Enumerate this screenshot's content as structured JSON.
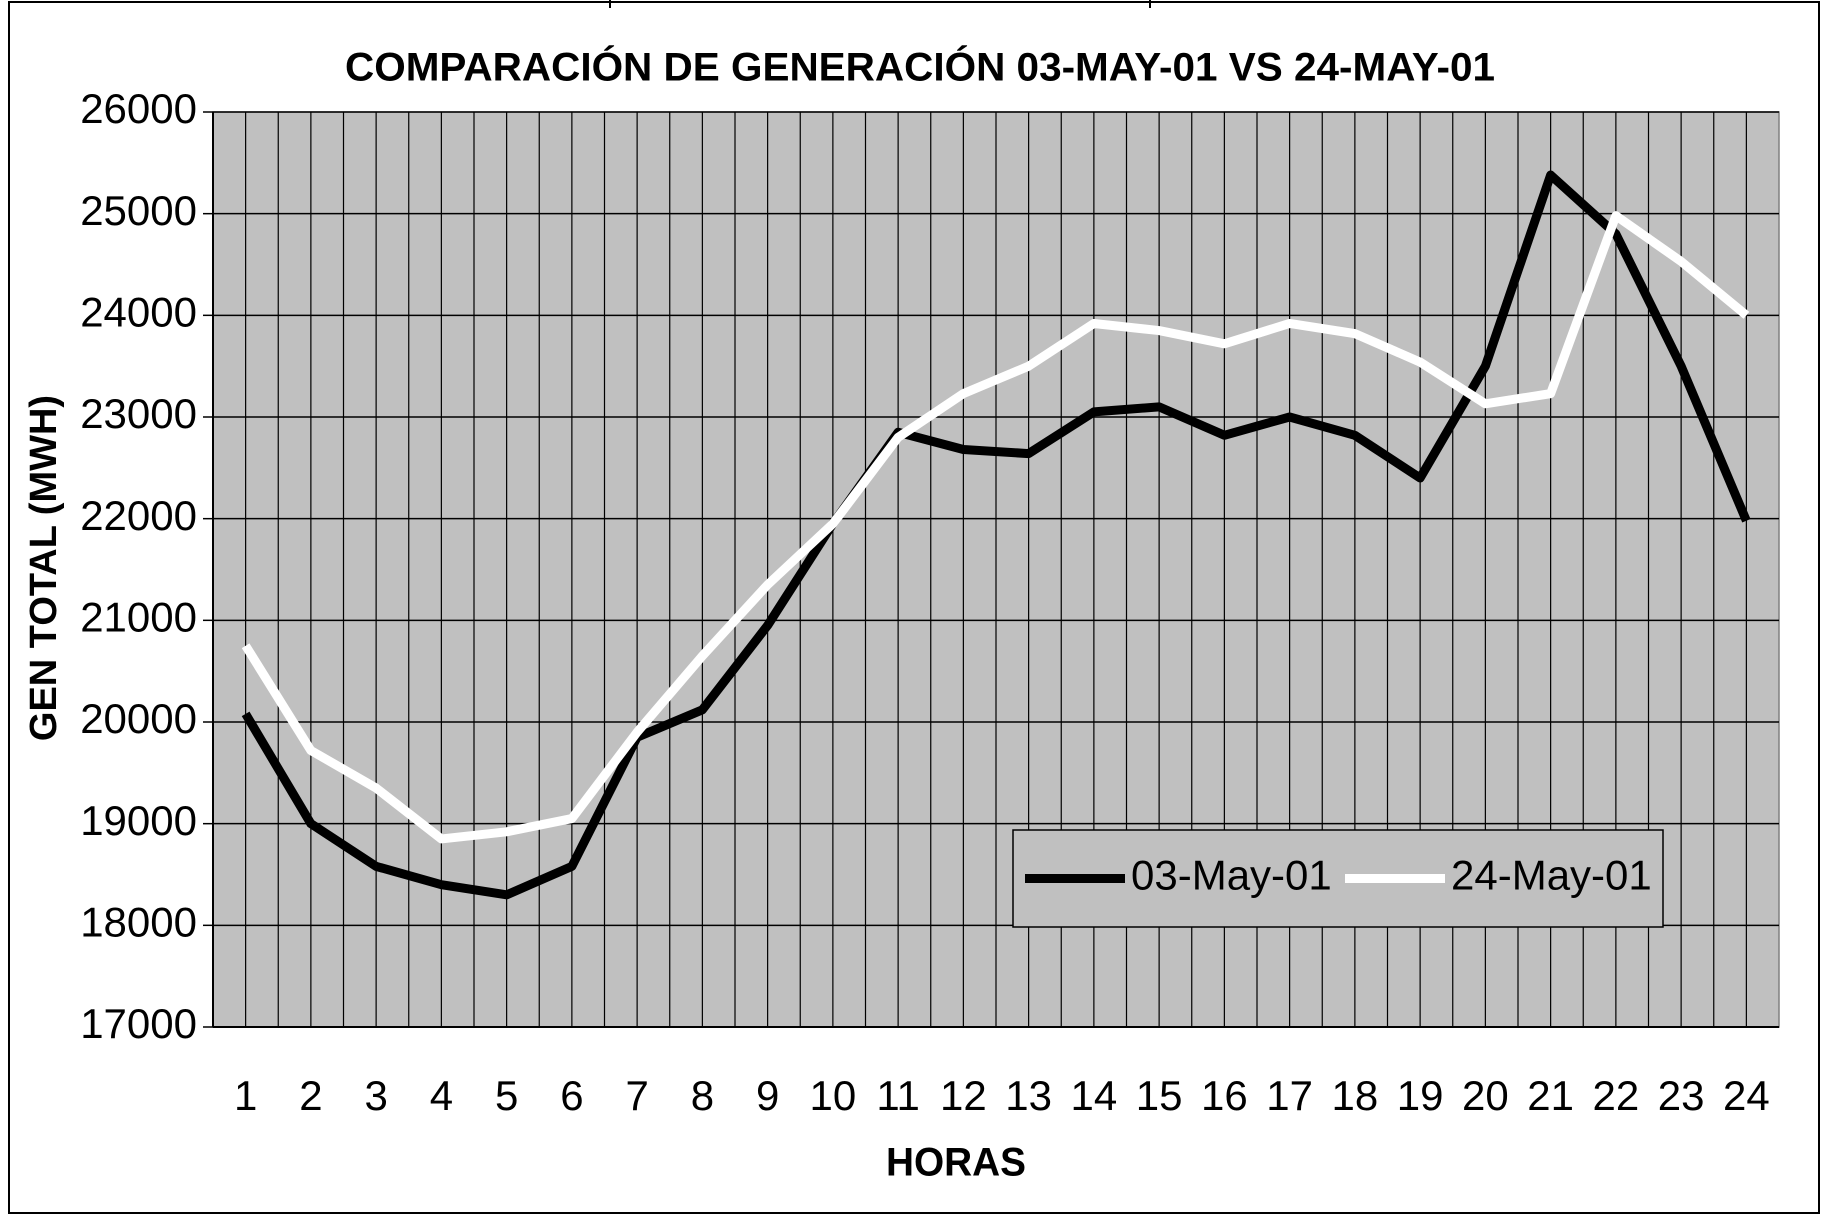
{
  "chart_data": {
    "type": "line",
    "title": "COMPARACIÓN DE GENERACIÓN 03-MAY-01 VS 24-MAY-01",
    "x_label": "HORAS",
    "y_label": "GEN TOTAL (MWH)",
    "categories": [
      "1",
      "2",
      "3",
      "4",
      "5",
      "6",
      "7",
      "8",
      "9",
      "10",
      "11",
      "12",
      "13",
      "14",
      "15",
      "16",
      "17",
      "18",
      "19",
      "20",
      "21",
      "22",
      "23",
      "24"
    ],
    "series": [
      {
        "name": "03-May-01",
        "color": "#000000",
        "values": [
          20080,
          19000,
          18580,
          18400,
          18300,
          18580,
          19850,
          20120,
          20950,
          21950,
          22850,
          22680,
          22640,
          23050,
          23100,
          22820,
          23000,
          22820,
          22400,
          23500,
          25380,
          24800,
          23500,
          21980
        ]
      },
      {
        "name": "24-May-01",
        "color": "#ffffff",
        "values": [
          20750,
          19720,
          19350,
          18850,
          18920,
          19050,
          19900,
          20650,
          21350,
          21950,
          22800,
          23230,
          23500,
          23920,
          23850,
          23720,
          23920,
          23820,
          23540,
          23130,
          23230,
          24980,
          24530,
          24000
        ]
      }
    ],
    "ylim": [
      17000,
      26000
    ],
    "yticks": [
      17000,
      18000,
      19000,
      20000,
      21000,
      22000,
      23000,
      24000,
      25000,
      26000
    ],
    "grid": true,
    "legend": "lower-right",
    "plot_background": "#c0c0c0"
  }
}
